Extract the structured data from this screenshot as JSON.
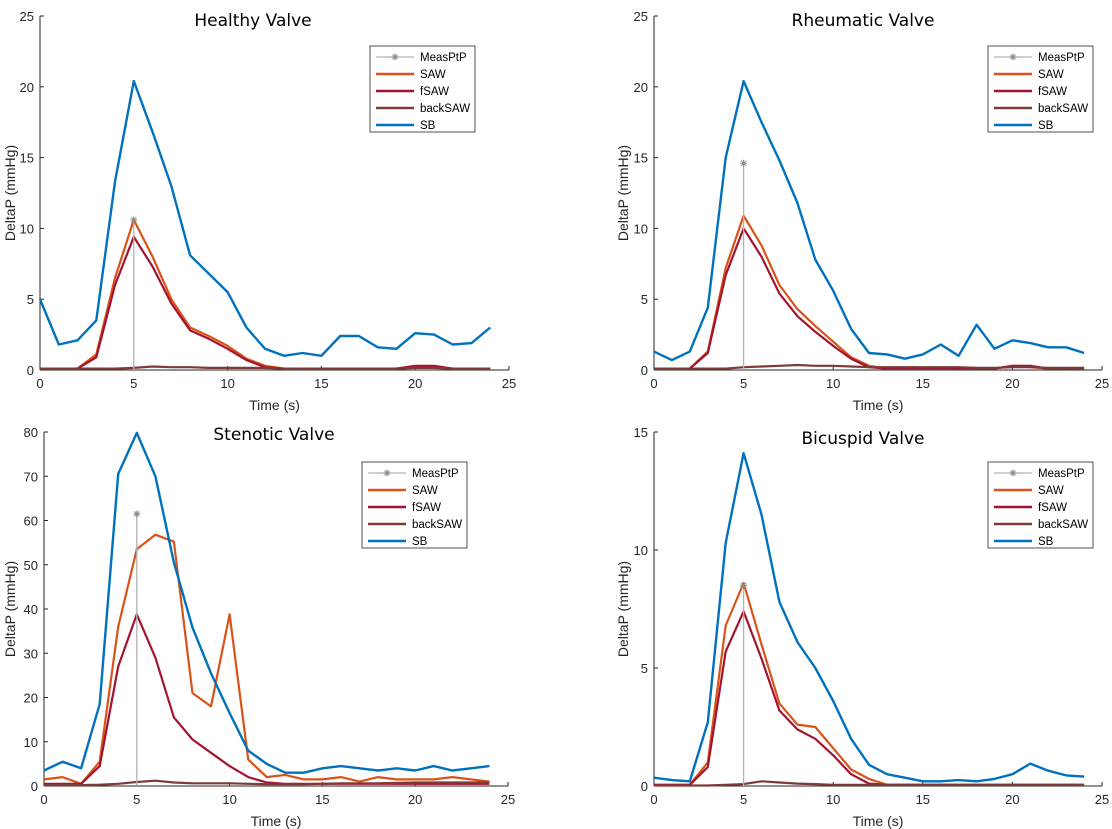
{
  "colors": {
    "MeasPtP": "#b3b3b3",
    "MeasPtP_marker": "#888888",
    "SAW": "#d95319",
    "fSAW": "#a2142f",
    "backSAW": "#7e3a36",
    "SB": "#0072bd"
  },
  "chart_data": [
    {
      "type": "line",
      "title": "Healthy Valve",
      "xlabel": "Time (s)",
      "ylabel": "DeltaP (mmHg)",
      "xlim": [
        0,
        25
      ],
      "ylim": [
        0,
        25
      ],
      "xticks": [
        0,
        5,
        10,
        15,
        20,
        25
      ],
      "yticks": [
        0,
        5,
        10,
        15,
        20,
        25
      ],
      "legend": [
        "MeasPtP",
        "SAW",
        "fSAW",
        "backSAW",
        "SB"
      ],
      "legend_position": "top-right",
      "meas": {
        "name": "MeasPtP",
        "x": 5,
        "y": 10.6
      },
      "series": [
        {
          "name": "SAW",
          "x": [
            0,
            1,
            2,
            3,
            4,
            5,
            6,
            7,
            8,
            9,
            10,
            11,
            12,
            13,
            14,
            15,
            16,
            17,
            18,
            19,
            20,
            21,
            22,
            23,
            24
          ],
          "values": [
            0.1,
            0.1,
            0.1,
            1.1,
            6.5,
            10.6,
            8.0,
            5.0,
            3.0,
            2.4,
            1.7,
            0.8,
            0.3,
            0.1,
            0.1,
            0.1,
            0.1,
            0.1,
            0.1,
            0.1,
            0.2,
            0.2,
            0.1,
            0.1,
            0.1
          ]
        },
        {
          "name": "fSAW",
          "x": [
            0,
            1,
            2,
            3,
            4,
            5,
            6,
            7,
            8,
            9,
            10,
            11,
            12,
            13,
            14,
            15,
            16,
            17,
            18,
            19,
            20,
            21,
            22,
            23,
            24
          ],
          "values": [
            0.1,
            0.1,
            0.1,
            0.9,
            6.0,
            9.4,
            7.3,
            4.7,
            2.8,
            2.2,
            1.5,
            0.7,
            0.2,
            0.1,
            0.1,
            0.1,
            0.1,
            0.1,
            0.1,
            0.1,
            0.3,
            0.3,
            0.1,
            0.1,
            0.1
          ]
        },
        {
          "name": "backSAW",
          "x": [
            0,
            1,
            2,
            3,
            4,
            5,
            6,
            7,
            8,
            9,
            10,
            11,
            12,
            13,
            14,
            15,
            16,
            17,
            18,
            19,
            20,
            21,
            22,
            23,
            24
          ],
          "values": [
            0.1,
            0.1,
            0.1,
            0.1,
            0.1,
            0.15,
            0.25,
            0.2,
            0.2,
            0.15,
            0.15,
            0.15,
            0.15,
            0.1,
            0.1,
            0.1,
            0.1,
            0.1,
            0.1,
            0.1,
            0.15,
            0.15,
            0.1,
            0.1,
            0.1
          ]
        },
        {
          "name": "SB",
          "x": [
            0,
            1,
            2,
            3,
            4,
            5,
            6,
            7,
            8,
            9,
            10,
            11,
            12,
            13,
            14,
            15,
            16,
            17,
            18,
            19,
            20,
            21,
            22,
            23,
            24
          ],
          "values": [
            5.0,
            1.8,
            2.1,
            3.5,
            13.3,
            20.4,
            16.8,
            13.0,
            8.1,
            6.8,
            5.5,
            3.0,
            1.5,
            1.0,
            1.2,
            1.0,
            2.4,
            2.4,
            1.6,
            1.5,
            2.6,
            2.5,
            1.8,
            1.9,
            3.0
          ]
        }
      ]
    },
    {
      "type": "line",
      "title": "Rheumatic Valve",
      "xlabel": "Time (s)",
      "ylabel": "DeltaP (mmHg)",
      "xlim": [
        0,
        25
      ],
      "ylim": [
        0,
        25
      ],
      "xticks": [
        0,
        5,
        10,
        15,
        20,
        25
      ],
      "yticks": [
        0,
        5,
        10,
        15,
        20,
        25
      ],
      "legend": [
        "MeasPtP",
        "SAW",
        "fSAW",
        "backSAW",
        "SB"
      ],
      "legend_position": "top-right",
      "meas": {
        "name": "MeasPtP",
        "x": 5,
        "y": 14.6
      },
      "series": [
        {
          "name": "SAW",
          "x": [
            0,
            1,
            2,
            3,
            4,
            5,
            6,
            7,
            8,
            9,
            10,
            11,
            12,
            13,
            14,
            15,
            16,
            17,
            18,
            19,
            20,
            21,
            22,
            23,
            24
          ],
          "values": [
            0.1,
            0.1,
            0.1,
            1.3,
            7.2,
            10.9,
            8.8,
            6.0,
            4.3,
            3.1,
            2.0,
            0.9,
            0.3,
            0.1,
            0.1,
            0.1,
            0.1,
            0.1,
            0.1,
            0.1,
            0.3,
            0.2,
            0.1,
            0.1,
            0.1
          ]
        },
        {
          "name": "fSAW",
          "x": [
            0,
            1,
            2,
            3,
            4,
            5,
            6,
            7,
            8,
            9,
            10,
            11,
            12,
            13,
            14,
            15,
            16,
            17,
            18,
            19,
            20,
            21,
            22,
            23,
            24
          ],
          "values": [
            0.1,
            0.1,
            0.1,
            1.2,
            6.7,
            10.0,
            8.0,
            5.4,
            3.8,
            2.7,
            1.7,
            0.8,
            0.2,
            0.1,
            0.1,
            0.1,
            0.1,
            0.1,
            0.1,
            0.1,
            0.3,
            0.3,
            0.1,
            0.1,
            0.1
          ]
        },
        {
          "name": "backSAW",
          "x": [
            0,
            1,
            2,
            3,
            4,
            5,
            6,
            7,
            8,
            9,
            10,
            11,
            12,
            13,
            14,
            15,
            16,
            17,
            18,
            19,
            20,
            21,
            22,
            23,
            24
          ],
          "values": [
            0.1,
            0.1,
            0.1,
            0.1,
            0.1,
            0.2,
            0.25,
            0.3,
            0.35,
            0.3,
            0.3,
            0.25,
            0.2,
            0.2,
            0.2,
            0.2,
            0.2,
            0.2,
            0.15,
            0.15,
            0.2,
            0.2,
            0.15,
            0.15,
            0.15
          ]
        },
        {
          "name": "SB",
          "x": [
            0,
            1,
            2,
            3,
            4,
            5,
            6,
            7,
            8,
            9,
            10,
            11,
            12,
            13,
            14,
            15,
            16,
            17,
            18,
            19,
            20,
            21,
            22,
            23,
            24
          ],
          "values": [
            1.3,
            0.7,
            1.3,
            4.4,
            15.0,
            20.4,
            17.5,
            14.8,
            11.8,
            7.8,
            5.6,
            2.9,
            1.2,
            1.1,
            0.8,
            1.1,
            1.8,
            1.0,
            3.2,
            1.5,
            2.1,
            1.9,
            1.6,
            1.6,
            1.2
          ]
        }
      ]
    },
    {
      "type": "line",
      "title": "Stenotic Valve",
      "xlabel": "Time (s)",
      "ylabel": "DeltaP (mmHg)",
      "xlim": [
        0,
        25
      ],
      "ylim": [
        0,
        80
      ],
      "xticks": [
        0,
        5,
        10,
        15,
        20,
        25
      ],
      "yticks": [
        0,
        10,
        20,
        30,
        40,
        50,
        60,
        70,
        80
      ],
      "legend": [
        "MeasPtP",
        "SAW",
        "fSAW",
        "backSAW",
        "SB"
      ],
      "legend_position": "top-right",
      "meas": {
        "name": "MeasPtP",
        "x": 5,
        "y": 61.5
      },
      "series": [
        {
          "name": "SAW",
          "x": [
            0,
            1,
            2,
            3,
            4,
            5,
            6,
            7,
            8,
            9,
            10,
            11,
            12,
            13,
            14,
            15,
            16,
            17,
            18,
            19,
            20,
            21,
            22,
            23,
            24
          ],
          "values": [
            1.5,
            2.0,
            0.5,
            5.5,
            36.0,
            53.5,
            56.8,
            55.2,
            21.0,
            18.0,
            38.8,
            6.0,
            2.0,
            2.5,
            1.5,
            1.5,
            2.0,
            1.0,
            2.0,
            1.5,
            1.5,
            1.5,
            2.0,
            1.5,
            1.0
          ]
        },
        {
          "name": "fSAW",
          "x": [
            0,
            1,
            2,
            3,
            4,
            5,
            6,
            7,
            8,
            9,
            10,
            11,
            12,
            13,
            14,
            15,
            16,
            17,
            18,
            19,
            20,
            21,
            22,
            23,
            24
          ],
          "values": [
            0.5,
            0.5,
            0.5,
            4.5,
            27.0,
            38.8,
            29.0,
            15.5,
            10.5,
            7.5,
            4.5,
            2.0,
            0.8,
            0.5,
            0.5,
            0.5,
            0.5,
            0.5,
            0.5,
            0.5,
            0.5,
            0.5,
            0.5,
            0.5,
            0.5
          ]
        },
        {
          "name": "backSAW",
          "x": [
            0,
            1,
            2,
            3,
            4,
            5,
            6,
            7,
            8,
            9,
            10,
            11,
            12,
            13,
            14,
            15,
            16,
            17,
            18,
            19,
            20,
            21,
            22,
            23,
            24
          ],
          "values": [
            0.2,
            0.2,
            0.2,
            0.3,
            0.5,
            0.9,
            1.2,
            0.8,
            0.6,
            0.6,
            0.6,
            0.5,
            0.4,
            0.4,
            0.4,
            0.5,
            0.6,
            0.6,
            0.6,
            0.7,
            0.8,
            0.8,
            0.8,
            0.8,
            0.8
          ]
        },
        {
          "name": "SB",
          "x": [
            0,
            1,
            2,
            3,
            4,
            5,
            6,
            7,
            8,
            9,
            10,
            11,
            12,
            13,
            14,
            15,
            16,
            17,
            18,
            19,
            20,
            21,
            22,
            23,
            24
          ],
          "values": [
            3.5,
            5.5,
            4.0,
            18.5,
            70.5,
            79.8,
            70.0,
            50.5,
            35.8,
            25.5,
            16.5,
            8.0,
            5.0,
            3.0,
            3.0,
            4.0,
            4.5,
            4.0,
            3.5,
            4.0,
            3.5,
            4.5,
            3.5,
            4.0,
            4.5
          ]
        }
      ]
    },
    {
      "type": "line",
      "title": "Bicuspid Valve",
      "xlabel": "Time (s)",
      "ylabel": "DeltaP (mmHg)",
      "xlim": [
        0,
        25
      ],
      "ylim": [
        0,
        15
      ],
      "xticks": [
        0,
        5,
        10,
        15,
        20,
        25
      ],
      "yticks": [
        0,
        5,
        10,
        15
      ],
      "legend": [
        "MeasPtP",
        "SAW",
        "fSAW",
        "backSAW",
        "SB"
      ],
      "legend_position": "top-right",
      "meas": {
        "name": "MeasPtP",
        "x": 5,
        "y": 8.5
      },
      "series": [
        {
          "name": "SAW",
          "x": [
            0,
            1,
            2,
            3,
            4,
            5,
            6,
            7,
            8,
            9,
            10,
            11,
            12,
            13,
            14,
            15,
            16,
            17,
            18,
            19,
            20,
            21,
            22,
            23,
            24
          ],
          "values": [
            0.05,
            0.05,
            0.05,
            1.0,
            6.8,
            8.6,
            6.0,
            3.5,
            2.6,
            2.5,
            1.6,
            0.7,
            0.3,
            0.05,
            0.05,
            0.05,
            0.05,
            0.05,
            0.05,
            0.05,
            0.05,
            0.05,
            0.05,
            0.05,
            0.05
          ]
        },
        {
          "name": "fSAW",
          "x": [
            0,
            1,
            2,
            3,
            4,
            5,
            6,
            7,
            8,
            9,
            10,
            11,
            12,
            13,
            14,
            15,
            16,
            17,
            18,
            19,
            20,
            21,
            22,
            23,
            24
          ],
          "values": [
            0.05,
            0.05,
            0.05,
            0.8,
            5.7,
            7.4,
            5.4,
            3.2,
            2.4,
            2.0,
            1.3,
            0.5,
            0.1,
            0.05,
            0.05,
            0.05,
            0.05,
            0.05,
            0.05,
            0.05,
            0.05,
            0.05,
            0.05,
            0.05,
            0.05
          ]
        },
        {
          "name": "backSAW",
          "x": [
            0,
            1,
            2,
            3,
            4,
            5,
            6,
            7,
            8,
            9,
            10,
            11,
            12,
            13,
            14,
            15,
            16,
            17,
            18,
            19,
            20,
            21,
            22,
            23,
            24
          ],
          "values": [
            0.02,
            0.02,
            0.02,
            0.02,
            0.05,
            0.08,
            0.2,
            0.15,
            0.1,
            0.08,
            0.05,
            0.05,
            0.05,
            0.05,
            0.05,
            0.05,
            0.05,
            0.05,
            0.05,
            0.05,
            0.05,
            0.05,
            0.05,
            0.05,
            0.05
          ]
        },
        {
          "name": "SB",
          "x": [
            0,
            1,
            2,
            3,
            4,
            5,
            6,
            7,
            8,
            9,
            10,
            11,
            12,
            13,
            14,
            15,
            16,
            17,
            18,
            19,
            20,
            21,
            22,
            23,
            24
          ],
          "values": [
            0.35,
            0.25,
            0.2,
            2.7,
            10.3,
            14.1,
            11.5,
            7.8,
            6.1,
            5.0,
            3.6,
            2.0,
            0.9,
            0.5,
            0.35,
            0.2,
            0.2,
            0.25,
            0.2,
            0.3,
            0.5,
            0.95,
            0.65,
            0.45,
            0.4
          ]
        }
      ]
    }
  ]
}
